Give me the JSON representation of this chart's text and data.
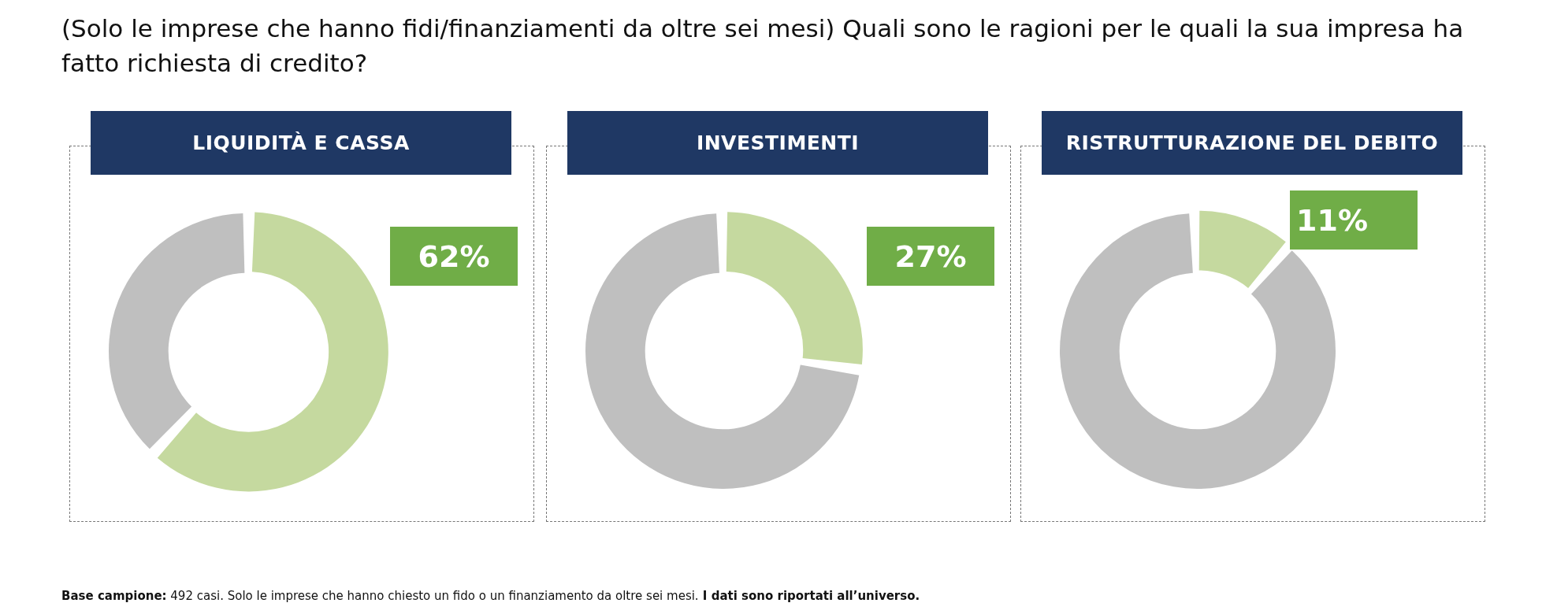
{
  "chart_data": [
    {
      "type": "other",
      "title": "(Solo le imprese che hanno fidi/finanziamenti da oltre sei mesi) Quali sono le ragioni per le quali la sua impresa ha fatto richiesta di credito?",
      "annotations": [
        "Base campione:",
        "492 casi. Solo le imprese che hanno chiesto un fido o un finanziamento da oltre sei mesi.",
        "I dati sono riportati all’universo."
      ]
    },
    {
      "type": "donut",
      "title": "LIQUIDITÀ E CASSA",
      "categories": [
        null,
        null
      ],
      "values": [
        62,
        38
      ],
      "colors": [
        "#c5d99f",
        "#bfbfbf"
      ],
      "value_labels": [
        "62%",
        null
      ]
    },
    {
      "type": "donut",
      "title": "INVESTIMENTI",
      "categories": [
        null,
        null
      ],
      "values": [
        27,
        73
      ],
      "colors": [
        "#c5d99f",
        "#bfbfbf"
      ],
      "value_labels": [
        "27%",
        null
      ]
    },
    {
      "type": "donut",
      "title": "RISTRUTTURAZIONE DEL DEBITO",
      "categories": [
        null,
        null
      ],
      "values": [
        11,
        89
      ],
      "colors": [
        "#c5d99f",
        "#bfbfbf"
      ],
      "value_labels": [
        "11%",
        null
      ]
    }
  ]
}
